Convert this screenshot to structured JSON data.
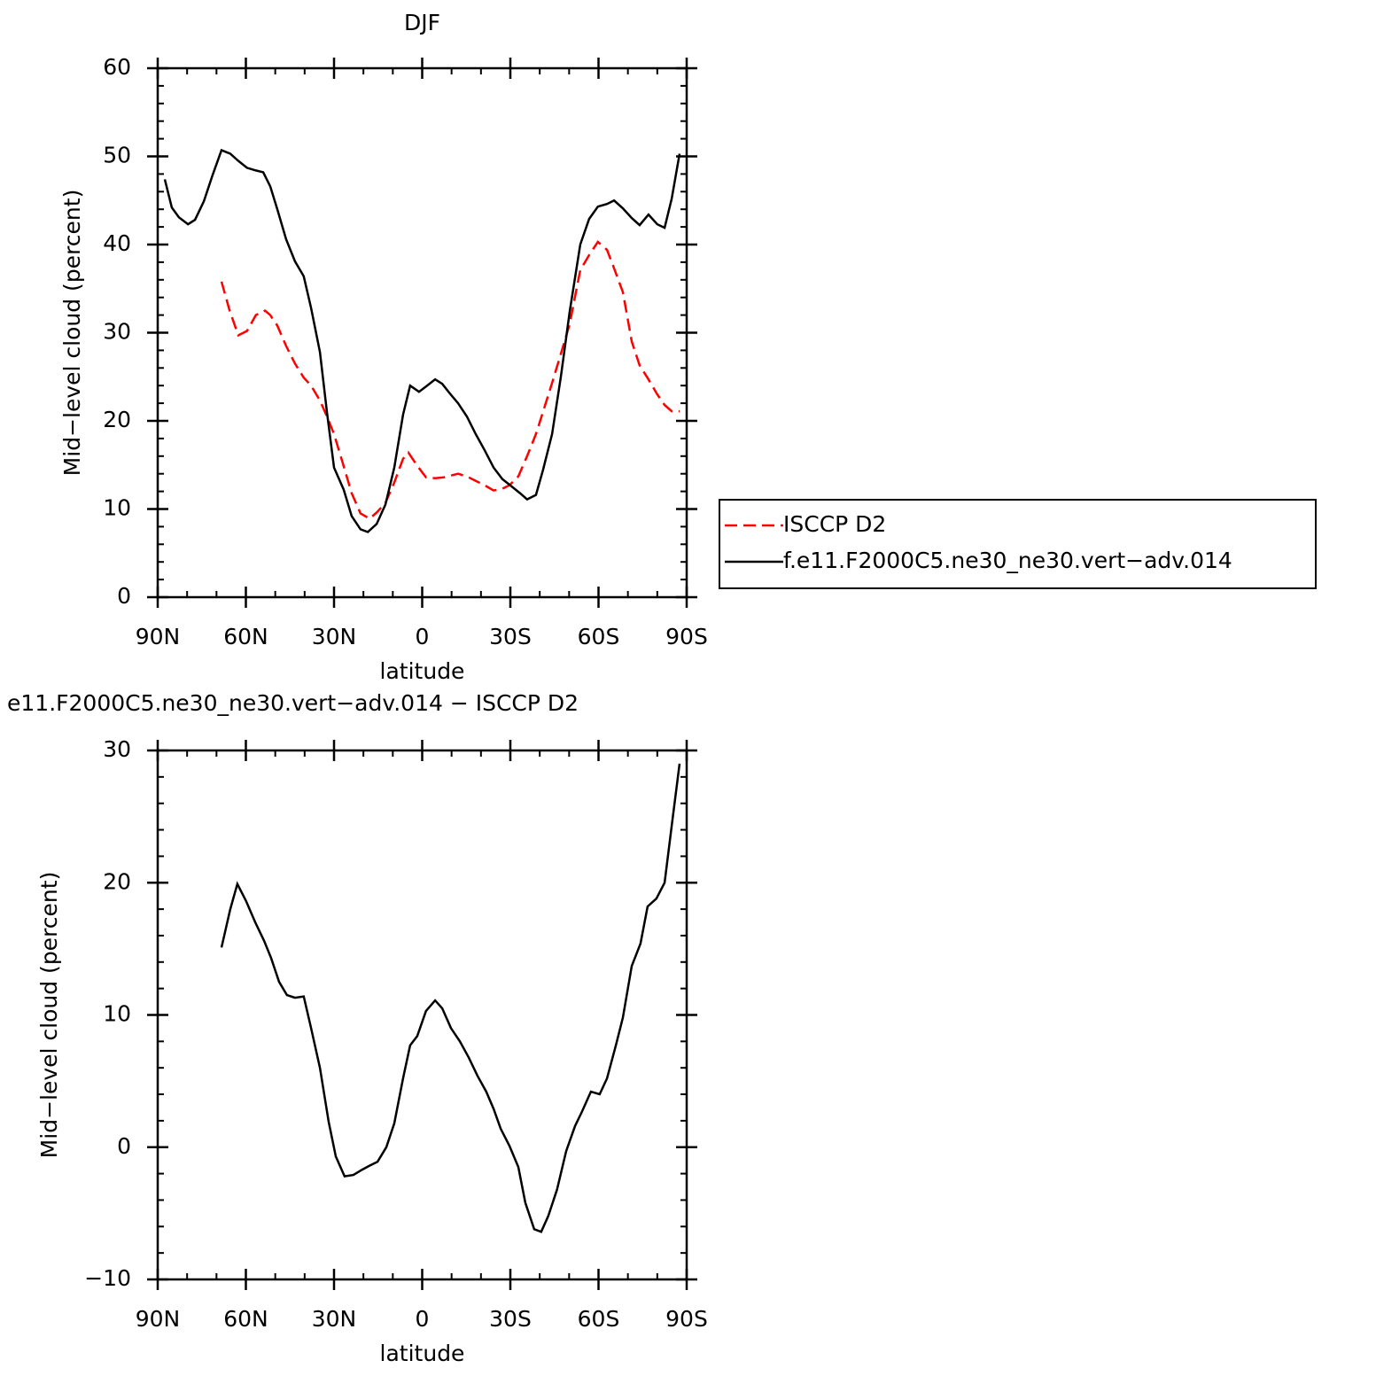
{
  "chart_data": [
    {
      "type": "line",
      "title": "DJF",
      "ylabel": "Mid−level cloud (percent)",
      "xlabel": "latitude",
      "xlim": [
        90,
        -90
      ],
      "xticks": [
        {
          "value": 90,
          "label": "90N"
        },
        {
          "value": 60,
          "label": "60N"
        },
        {
          "value": 30,
          "label": "30N"
        },
        0,
        {
          "value": -30,
          "label": "30S"
        },
        {
          "value": -60,
          "label": "60S"
        },
        {
          "value": -90,
          "label": "90S"
        }
      ],
      "ylim": [
        0,
        60
      ],
      "yticks": [
        0,
        10,
        20,
        30,
        40,
        50,
        60
      ],
      "legend": "right",
      "series": [
        {
          "name": "ISCCP D2",
          "color": "#ff0000",
          "dash": "dashed",
          "x": [
            68.3,
            65.6,
            62.6,
            59.6,
            56.6,
            53.5,
            51.7,
            49.3,
            46.3,
            43.3,
            40.3,
            37.8,
            34.8,
            32.4,
            30.0,
            27.0,
            24.0,
            21.0,
            17.9,
            15.5,
            12.5,
            9.5,
            6.5,
            4.7,
            1.7,
            -1.3,
            -4.4,
            -7.4,
            -9.8,
            -12.2,
            -15.2,
            -18.2,
            -21.2,
            -24.3,
            -27.3,
            -29.7,
            -32.7,
            -35.7,
            -38.7,
            -41.1,
            -44.2,
            -47.2,
            -50.2,
            -53.8,
            -56.8,
            -59.8,
            -62.9,
            -65.3,
            -68.3,
            -71.3,
            -74.0,
            -77.0,
            -80.0,
            -82.5,
            -84.9,
            -87.6
          ],
          "values": [
            35.8,
            32.6,
            29.7,
            30.2,
            32.0,
            32.5,
            32.0,
            30.8,
            28.5,
            26.5,
            24.9,
            24.0,
            22.3,
            20.5,
            18.5,
            15.2,
            11.8,
            9.5,
            8.9,
            9.6,
            10.7,
            13.0,
            15.7,
            16.4,
            14.9,
            13.6,
            13.5,
            13.6,
            13.8,
            14.0,
            13.7,
            13.2,
            12.7,
            12.1,
            12.3,
            12.7,
            13.7,
            16.0,
            18.5,
            21.0,
            24.3,
            27.6,
            31.0,
            37.1,
            38.8,
            40.3,
            39.4,
            37.3,
            34.6,
            29.0,
            26.3,
            24.7,
            23.0,
            21.8,
            21.1,
            21.1
          ]
        },
        {
          "name": "f.e11.F2000C5.ne30_ne30.vert−adv.014",
          "color": "#000000",
          "dash": "solid",
          "x": [
            87.6,
            85.2,
            82.8,
            79.7,
            77.3,
            74.3,
            71.3,
            68.3,
            65.3,
            62.6,
            59.6,
            56.6,
            54.1,
            51.7,
            49.3,
            46.3,
            43.3,
            40.3,
            37.8,
            34.8,
            32.4,
            30.0,
            26.7,
            24.0,
            21.0,
            18.5,
            15.5,
            12.5,
            9.5,
            6.5,
            4.1,
            1.1,
            -1.3,
            -4.4,
            -6.8,
            -9.2,
            -12.2,
            -15.2,
            -18.2,
            -21.2,
            -24.3,
            -27.3,
            -30.3,
            -33.3,
            -35.7,
            -38.7,
            -41.1,
            -44.2,
            -47.2,
            -50.2,
            -53.8,
            -56.8,
            -59.8,
            -62.9,
            -65.3,
            -68.3,
            -71.3,
            -74.0,
            -77.0,
            -80.0,
            -82.5,
            -84.9,
            -87.6
          ],
          "values": [
            47.4,
            44.2,
            43.1,
            42.3,
            42.8,
            44.9,
            47.9,
            50.7,
            50.3,
            49.5,
            48.7,
            48.4,
            48.2,
            46.6,
            44.0,
            40.6,
            38.1,
            36.4,
            32.8,
            27.8,
            21.0,
            14.7,
            12.2,
            9.2,
            7.7,
            7.4,
            8.3,
            10.5,
            14.7,
            20.7,
            24.0,
            23.3,
            23.9,
            24.7,
            24.2,
            23.2,
            22.0,
            20.5,
            18.5,
            16.7,
            14.7,
            13.4,
            12.6,
            11.8,
            11.1,
            11.6,
            14.4,
            18.5,
            25.0,
            32.4,
            40.0,
            42.9,
            44.3,
            44.6,
            45.0,
            44.1,
            43.0,
            42.2,
            43.4,
            42.3,
            41.9,
            45.2,
            50.3
          ]
        }
      ]
    },
    {
      "type": "line",
      "title": "e11.F2000C5.ne30_ne30.vert−adv.014 − ISCCP D2",
      "ylabel": "Mid−level cloud (percent)",
      "xlabel": "latitude",
      "xlim": [
        90,
        -90
      ],
      "xticks": [
        {
          "value": 90,
          "label": "90N"
        },
        {
          "value": 60,
          "label": "60N"
        },
        {
          "value": 30,
          "label": "30N"
        },
        0,
        {
          "value": -30,
          "label": "30S"
        },
        {
          "value": -60,
          "label": "60S"
        },
        {
          "value": -90,
          "label": "90S"
        }
      ],
      "ylim": [
        -10,
        30
      ],
      "yticks": [
        {
          "value": -10,
          "label": "−10"
        },
        0,
        10,
        20,
        30
      ],
      "series": [
        {
          "color": "#000000",
          "dash": "solid",
          "x": [
            68.3,
            65.3,
            62.9,
            59.9,
            56.8,
            53.8,
            51.4,
            48.7,
            46.0,
            43.3,
            40.3,
            37.8,
            34.8,
            31.8,
            29.4,
            26.4,
            23.4,
            20.4,
            17.9,
            15.2,
            12.2,
            9.5,
            6.5,
            4.1,
            1.7,
            -1.3,
            -4.4,
            -6.8,
            -9.8,
            -12.8,
            -15.8,
            -18.8,
            -21.8,
            -24.3,
            -26.7,
            -29.7,
            -32.7,
            -35.1,
            -38.1,
            -40.5,
            -42.9,
            -45.9,
            -49.0,
            -52.0,
            -54.4,
            -57.4,
            -60.4,
            -62.9,
            -65.9,
            -68.3,
            -71.3,
            -74.3,
            -76.7,
            -79.7,
            -82.5,
            -84.9,
            -87.6
          ],
          "values": [
            15.1,
            18.0,
            19.9,
            18.6,
            17.0,
            15.6,
            14.3,
            12.5,
            11.5,
            11.3,
            11.4,
            9.0,
            6.0,
            1.9,
            -0.7,
            -2.2,
            -2.1,
            -1.7,
            -1.4,
            -1.1,
            0.0,
            1.8,
            5.2,
            7.7,
            8.4,
            10.3,
            11.1,
            10.5,
            9.0,
            8.0,
            6.8,
            5.4,
            4.2,
            2.9,
            1.4,
            0.1,
            -1.5,
            -4.2,
            -6.2,
            -6.4,
            -5.2,
            -3.2,
            -0.3,
            1.6,
            2.7,
            4.2,
            4.0,
            5.2,
            7.7,
            9.8,
            13.7,
            15.4,
            18.2,
            18.8,
            20.0,
            24.3,
            29.0
          ]
        }
      ]
    }
  ]
}
